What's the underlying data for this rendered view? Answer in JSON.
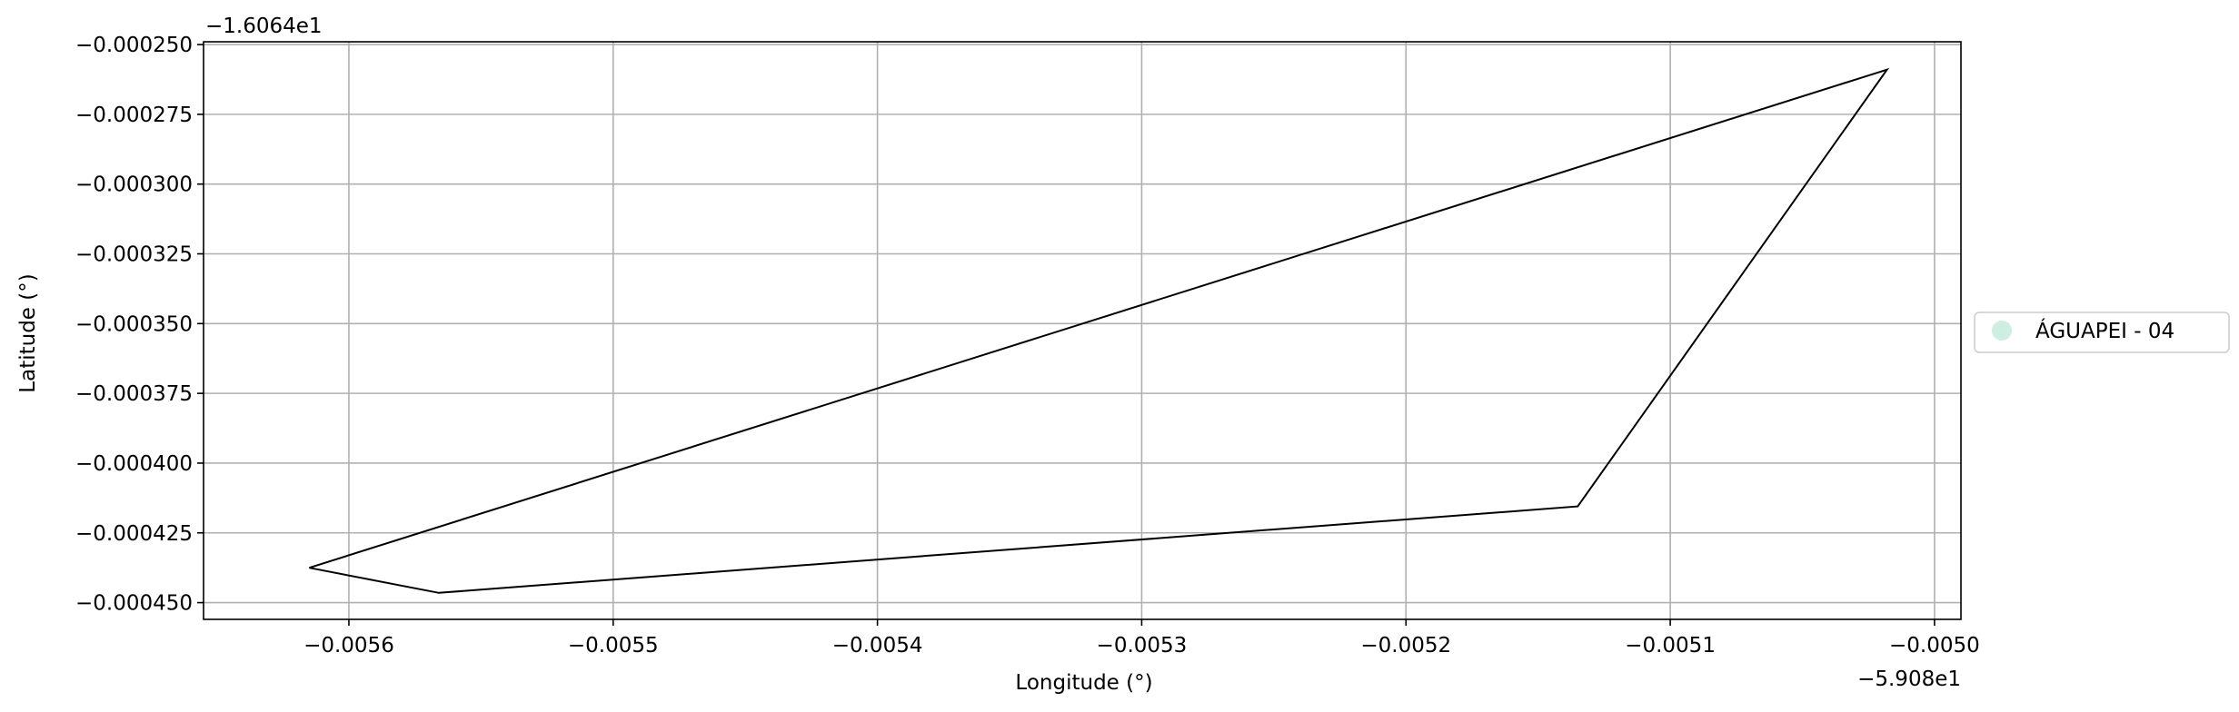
{
  "chart_data": {
    "type": "line",
    "xlabel": "Longitude (°)",
    "ylabel": "Latitude (°)",
    "x_offset_label": "−5.908e1",
    "y_offset_label": "−1.6064e1",
    "x_offset": -59.08,
    "y_offset": -16.064,
    "xlim": [
      -0.005655,
      -0.00499
    ],
    "ylim": [
      -0.000456,
      -0.000249
    ],
    "x_ticks": [
      {
        "value": -0.0056,
        "label": "−0.0056"
      },
      {
        "value": -0.0055,
        "label": "−0.0055"
      },
      {
        "value": -0.0054,
        "label": "−0.0054"
      },
      {
        "value": -0.0053,
        "label": "−0.0053"
      },
      {
        "value": -0.0052,
        "label": "−0.0052"
      },
      {
        "value": -0.0051,
        "label": "−0.0051"
      },
      {
        "value": -0.005,
        "label": "−0.0050"
      }
    ],
    "y_ticks": [
      {
        "value": -0.00025,
        "label": "−0.000250"
      },
      {
        "value": -0.000275,
        "label": "−0.000275"
      },
      {
        "value": -0.0003,
        "label": "−0.000300"
      },
      {
        "value": -0.000325,
        "label": "−0.000325"
      },
      {
        "value": -0.00035,
        "label": "−0.000350"
      },
      {
        "value": -0.000375,
        "label": "−0.000375"
      },
      {
        "value": -0.0004,
        "label": "−0.000400"
      },
      {
        "value": -0.000425,
        "label": "−0.000425"
      },
      {
        "value": -0.00045,
        "label": "−0.000450"
      }
    ],
    "grid": true,
    "legend_position": "center-right outside",
    "series": [
      {
        "name": "ÁGUAPEI - 04",
        "color": "#000000",
        "marker_color": "#cdeee0",
        "x": [
          -0.005615,
          -0.005566,
          -0.005135,
          -0.005018,
          -0.005615
        ],
        "y": [
          -0.0004375,
          -0.0004465,
          -0.0004155,
          -0.000259,
          -0.0004375
        ]
      }
    ]
  }
}
